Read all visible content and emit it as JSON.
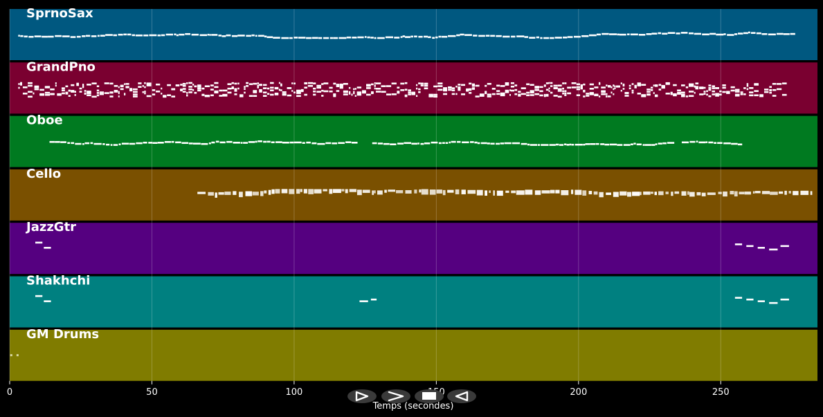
{
  "axis": {
    "xlabel": "Temps (secondes)",
    "xlim": [
      0,
      284
    ],
    "ticks": [
      0,
      50,
      100,
      150,
      200,
      250
    ],
    "grid": true
  },
  "colors": {
    "background": "#000000",
    "note": "#ffffff",
    "drum_note": "#d8d8a0",
    "grid": "rgba(255,255,255,0.22)"
  },
  "tracks": [
    {
      "name": "SprnoSax",
      "color": "#005880",
      "start": 3,
      "end": 275,
      "style": "melody"
    },
    {
      "name": "GrandPno",
      "color": "#7a0030",
      "start": 3,
      "end": 272,
      "style": "dense"
    },
    {
      "name": "Oboe",
      "color": "#007a20",
      "start": 14,
      "end": 257,
      "style": "melody",
      "gaps": [
        [
          121,
          127
        ],
        [
          232,
          235
        ]
      ]
    },
    {
      "name": "Cello",
      "color": "#7a5000",
      "start": 66,
      "end": 282,
      "style": "chunky"
    },
    {
      "name": "JazzGtr",
      "color": "#550080",
      "start": 9,
      "end": 274,
      "style": "sparse"
    },
    {
      "name": "Shakhchi",
      "color": "#008080",
      "start": 9,
      "end": 274,
      "style": "sparse2"
    },
    {
      "name": "GM Drums",
      "color": "#807c00",
      "start": 0,
      "end": 3,
      "style": "drums"
    }
  ],
  "player": {
    "buttons": [
      {
        "name": "play-icon",
        "label": "play"
      },
      {
        "name": "fast-forward-icon",
        "label": "next"
      },
      {
        "name": "stop-icon",
        "label": "stop"
      },
      {
        "name": "rewind-icon",
        "label": "previous"
      }
    ]
  }
}
